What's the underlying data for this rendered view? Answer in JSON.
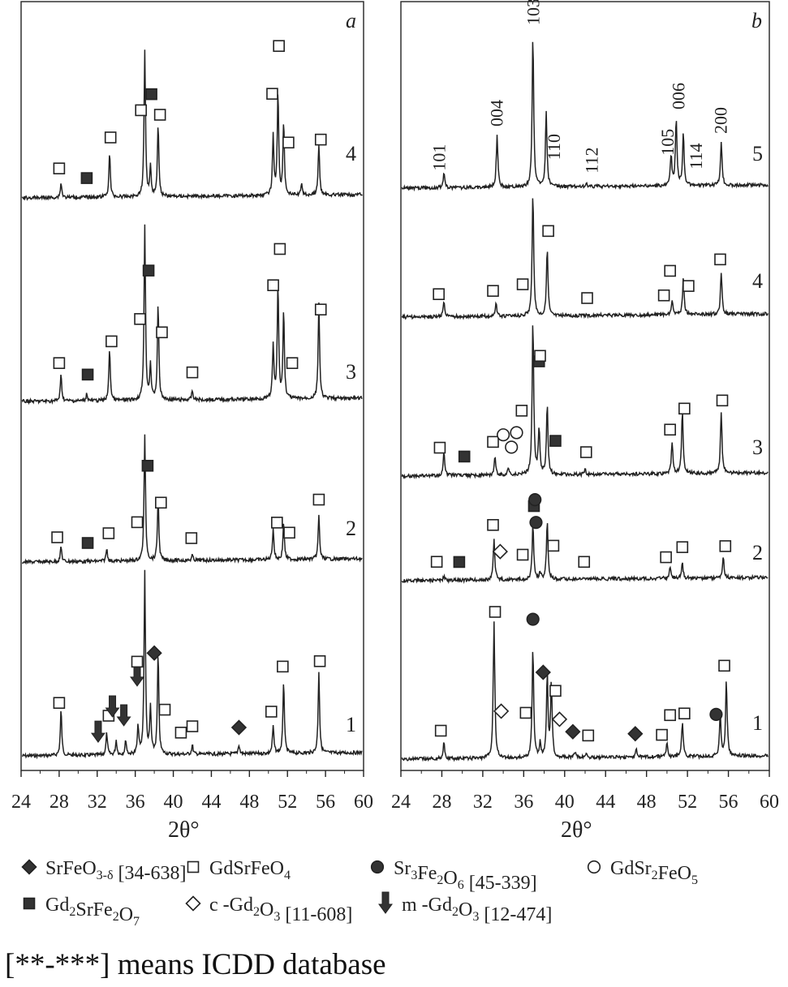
{
  "caption": "[**-***] means ICDD database",
  "colors": {
    "trace": "#222222",
    "frame": "#222222",
    "filled_marker": "#333333",
    "open_marker": "#ffffff"
  },
  "legend": [
    {
      "marker": "filled-diamond",
      "label": "SrFeO",
      "sub": "3-δ",
      "suffix": " [34-638]"
    },
    {
      "marker": "open-square",
      "label": "GdSrFeO",
      "sub": "4",
      "suffix": ""
    },
    {
      "marker": "filled-circle",
      "label": "Sr",
      "sub": "3",
      "label2": "Fe",
      "sub2": "2",
      "label3": "O",
      "sub3": "6",
      "suffix": " [45-339]"
    },
    {
      "marker": "open-circle",
      "label": "GdSr",
      "sub": "2",
      "label2": "FeO",
      "sub2": "5",
      "suffix": ""
    },
    {
      "marker": "filled-square",
      "label": "Gd",
      "sub": "2",
      "label2": "SrFe",
      "sub2": "2",
      "label3": "O",
      "sub3": "7",
      "suffix": ""
    },
    {
      "marker": "open-diamond",
      "label": "c -Gd",
      "sub": "2",
      "label2": "O",
      "sub2": "3",
      "suffix": " [11-608]"
    },
    {
      "marker": "arrow",
      "label": "m -Gd",
      "sub": "2",
      "label2": "O",
      "sub2": "3",
      "suffix": " [12-474]"
    }
  ],
  "chart_data": [
    {
      "type": "line",
      "panel": "a",
      "xlabel": "2θ°",
      "xlim": [
        24,
        60
      ],
      "xticks": [
        24,
        28,
        32,
        36,
        40,
        44,
        48,
        52,
        56,
        60
      ],
      "grid": false,
      "series": [
        {
          "name": "1",
          "peaks": [
            [
              28.2,
              0.25
            ],
            [
              33.0,
              0.12
            ],
            [
              34.0,
              0.08
            ],
            [
              35.0,
              0.08
            ],
            [
              36.3,
              0.15
            ],
            [
              37.0,
              1.0
            ],
            [
              37.6,
              0.25
            ],
            [
              38.4,
              0.55
            ],
            [
              42.0,
              0.05
            ],
            [
              46.9,
              0.05
            ],
            [
              50.5,
              0.15
            ],
            [
              51.6,
              0.4
            ],
            [
              55.3,
              0.45
            ]
          ],
          "markers": [
            {
              "type": "open-square",
              "x": 28.0
            },
            {
              "type": "arrow",
              "x": 32.1
            },
            {
              "type": "open-square",
              "x": 33.2
            },
            {
              "type": "arrow",
              "x": 33.6
            },
            {
              "type": "arrow",
              "x": 34.8
            },
            {
              "type": "arrow",
              "x": 36.2
            },
            {
              "type": "open-square",
              "x": 36.2
            },
            {
              "type": "filled-diamond",
              "x": 38.0
            },
            {
              "type": "open-square",
              "x": 39.1
            },
            {
              "type": "open-square",
              "x": 40.8
            },
            {
              "type": "open-square",
              "x": 42.0
            },
            {
              "type": "filled-diamond",
              "x": 46.9
            },
            {
              "type": "open-square",
              "x": 50.3
            },
            {
              "type": "open-square",
              "x": 51.5
            },
            {
              "type": "open-square",
              "x": 55.4
            }
          ]
        },
        {
          "name": "2",
          "peaks": [
            [
              28.2,
              0.12
            ],
            [
              33.0,
              0.1
            ],
            [
              37.0,
              1.0
            ],
            [
              38.4,
              0.5
            ],
            [
              42.0,
              0.04
            ],
            [
              50.5,
              0.25
            ],
            [
              51.6,
              0.3
            ],
            [
              55.3,
              0.35
            ]
          ],
          "markers": [
            {
              "type": "open-square",
              "x": 27.8
            },
            {
              "type": "filled-square",
              "x": 31.0
            },
            {
              "type": "open-square",
              "x": 33.2
            },
            {
              "type": "open-square",
              "x": 36.2
            },
            {
              "type": "filled-square",
              "x": 37.3
            },
            {
              "type": "open-square",
              "x": 38.7
            },
            {
              "type": "open-square",
              "x": 41.9
            },
            {
              "type": "open-square",
              "x": 50.9
            },
            {
              "type": "open-square",
              "x": 52.2
            },
            {
              "type": "open-square",
              "x": 55.3
            }
          ]
        },
        {
          "name": "3",
          "peaks": [
            [
              28.2,
              0.15
            ],
            [
              30.9,
              0.04
            ],
            [
              33.3,
              0.3
            ],
            [
              37.0,
              1.0
            ],
            [
              37.6,
              0.2
            ],
            [
              38.4,
              0.55
            ],
            [
              42.0,
              0.05
            ],
            [
              50.5,
              0.3
            ],
            [
              51.0,
              0.65
            ],
            [
              51.6,
              0.5
            ],
            [
              55.3,
              0.55
            ]
          ],
          "markers": [
            {
              "type": "open-square",
              "x": 28.0
            },
            {
              "type": "filled-square",
              "x": 31.0
            },
            {
              "type": "open-square",
              "x": 33.5
            },
            {
              "type": "open-square",
              "x": 36.5
            },
            {
              "type": "filled-square",
              "x": 37.4
            },
            {
              "type": "open-square",
              "x": 38.8
            },
            {
              "type": "open-square",
              "x": 42.0
            },
            {
              "type": "open-square",
              "x": 50.5
            },
            {
              "type": "open-square",
              "x": 51.2
            },
            {
              "type": "open-square",
              "x": 52.5
            },
            {
              "type": "open-square",
              "x": 55.5
            }
          ]
        },
        {
          "name": "4",
          "peaks": [
            [
              28.2,
              0.1
            ],
            [
              33.3,
              0.3
            ],
            [
              37.0,
              1.0
            ],
            [
              37.6,
              0.2
            ],
            [
              38.4,
              0.5
            ],
            [
              50.5,
              0.4
            ],
            [
              51.0,
              0.7
            ],
            [
              51.6,
              0.5
            ],
            [
              53.5,
              0.08
            ],
            [
              55.3,
              0.35
            ]
          ],
          "markers": [
            {
              "type": "open-square",
              "x": 28.0
            },
            {
              "type": "filled-square",
              "x": 30.9
            },
            {
              "type": "open-square",
              "x": 33.4
            },
            {
              "type": "open-square",
              "x": 36.6
            },
            {
              "type": "filled-square",
              "x": 37.7
            },
            {
              "type": "open-square",
              "x": 38.6
            },
            {
              "type": "open-square",
              "x": 50.4
            },
            {
              "type": "open-square",
              "x": 51.1
            },
            {
              "type": "open-square",
              "x": 52.1
            },
            {
              "type": "open-square",
              "x": 55.5
            }
          ]
        }
      ]
    },
    {
      "type": "line",
      "panel": "b",
      "xlabel": "2θ°",
      "xlim": [
        24,
        60
      ],
      "xticks": [
        24,
        28,
        32,
        36,
        40,
        44,
        48,
        52,
        56,
        60
      ],
      "grid": false,
      "series": [
        {
          "name": "1",
          "peaks": [
            [
              28.2,
              0.12
            ],
            [
              33.1,
              1.0
            ],
            [
              36.9,
              0.8
            ],
            [
              37.6,
              0.1
            ],
            [
              38.3,
              0.6
            ],
            [
              38.7,
              0.55
            ],
            [
              41.0,
              0.04
            ],
            [
              42.1,
              0.03
            ],
            [
              47.0,
              0.05
            ],
            [
              50.0,
              0.1
            ],
            [
              51.5,
              0.25
            ],
            [
              55.2,
              0.3
            ],
            [
              55.8,
              0.55
            ]
          ],
          "markers": [
            {
              "type": "open-square",
              "x": 27.9
            },
            {
              "type": "open-square",
              "x": 33.2
            },
            {
              "type": "open-diamond",
              "x": 33.8
            },
            {
              "type": "open-square",
              "x": 36.2
            },
            {
              "type": "filled-circle",
              "x": 36.9
            },
            {
              "type": "filled-diamond",
              "x": 37.9
            },
            {
              "type": "open-square",
              "x": 39.1
            },
            {
              "type": "open-diamond",
              "x": 39.5
            },
            {
              "type": "filled-diamond",
              "x": 40.8
            },
            {
              "type": "open-square",
              "x": 42.3
            },
            {
              "type": "filled-diamond",
              "x": 46.9
            },
            {
              "type": "open-square",
              "x": 49.5
            },
            {
              "type": "open-square",
              "x": 50.3
            },
            {
              "type": "open-square",
              "x": 51.7
            },
            {
              "type": "filled-circle",
              "x": 54.8
            },
            {
              "type": "open-square",
              "x": 55.6
            }
          ]
        },
        {
          "name": "2",
          "peaks": [
            [
              28.2,
              0.05
            ],
            [
              33.1,
              0.55
            ],
            [
              36.9,
              0.75
            ],
            [
              37.6,
              0.1
            ],
            [
              38.3,
              0.8
            ],
            [
              50.3,
              0.15
            ],
            [
              51.5,
              0.2
            ],
            [
              55.5,
              0.3
            ]
          ],
          "markers": [
            {
              "type": "open-square",
              "x": 27.5
            },
            {
              "type": "filled-square",
              "x": 29.7
            },
            {
              "type": "open-square",
              "x": 33.0
            },
            {
              "type": "open-diamond",
              "x": 33.7
            },
            {
              "type": "open-square",
              "x": 35.9
            },
            {
              "type": "filled-square",
              "x": 37.0
            },
            {
              "type": "filled-circle",
              "x": 37.2
            },
            {
              "type": "filled-circle",
              "x": 37.1
            },
            {
              "type": "open-square",
              "x": 38.9
            },
            {
              "type": "open-square",
              "x": 41.9
            },
            {
              "type": "open-square",
              "x": 49.9
            },
            {
              "type": "open-square",
              "x": 51.5
            },
            {
              "type": "open-square",
              "x": 55.7
            }
          ]
        },
        {
          "name": "3",
          "peaks": [
            [
              28.2,
              0.15
            ],
            [
              33.2,
              0.12
            ],
            [
              34.5,
              0.05
            ],
            [
              36.9,
              1.0
            ],
            [
              37.5,
              0.3
            ],
            [
              38.3,
              0.45
            ],
            [
              42.0,
              0.03
            ],
            [
              50.5,
              0.2
            ],
            [
              51.5,
              0.4
            ],
            [
              55.3,
              0.4
            ]
          ],
          "markers": [
            {
              "type": "open-square",
              "x": 27.8
            },
            {
              "type": "filled-square",
              "x": 30.2
            },
            {
              "type": "open-square",
              "x": 33.0
            },
            {
              "type": "open-circle",
              "x": 34.0
            },
            {
              "type": "open-circle",
              "x": 34.8
            },
            {
              "type": "open-circle",
              "x": 35.3
            },
            {
              "type": "open-square",
              "x": 35.8
            },
            {
              "type": "filled-square",
              "x": 37.5
            },
            {
              "type": "open-square",
              "x": 37.6
            },
            {
              "type": "filled-square",
              "x": 39.1
            },
            {
              "type": "open-square",
              "x": 42.1
            },
            {
              "type": "open-square",
              "x": 50.3
            },
            {
              "type": "open-square",
              "x": 51.7
            },
            {
              "type": "open-square",
              "x": 55.4
            }
          ]
        },
        {
          "name": "4",
          "peaks": [
            [
              28.2,
              0.12
            ],
            [
              33.3,
              0.1
            ],
            [
              36.9,
              1.0
            ],
            [
              38.3,
              0.55
            ],
            [
              50.5,
              0.12
            ],
            [
              51.6,
              0.3
            ],
            [
              55.3,
              0.35
            ]
          ],
          "markers": [
            {
              "type": "open-square",
              "x": 27.7
            },
            {
              "type": "open-square",
              "x": 33.0
            },
            {
              "type": "open-square",
              "x": 35.9
            },
            {
              "type": "open-square",
              "x": 38.4
            },
            {
              "type": "open-square",
              "x": 42.2
            },
            {
              "type": "open-square",
              "x": 49.7
            },
            {
              "type": "open-square",
              "x": 50.3
            },
            {
              "type": "open-square",
              "x": 52.1
            },
            {
              "type": "open-square",
              "x": 55.2
            }
          ]
        },
        {
          "name": "5",
          "peaks": [
            [
              28.2,
              0.1
            ],
            [
              33.4,
              0.35
            ],
            [
              36.9,
              1.0
            ],
            [
              38.2,
              0.5
            ],
            [
              42.1,
              0.02
            ],
            [
              50.4,
              0.2
            ],
            [
              50.9,
              0.45
            ],
            [
              51.6,
              0.35
            ],
            [
              55.3,
              0.3
            ]
          ],
          "hkl": [
            {
              "label": "101",
              "x": 27.7
            },
            {
              "label": "004",
              "x": 33.3
            },
            {
              "label": "103",
              "x": 36.9
            },
            {
              "label": "110",
              "x": 38.9
            },
            {
              "label": "112",
              "x": 42.6
            },
            {
              "label": "105",
              "x": 50.0
            },
            {
              "label": "006",
              "x": 51.1
            },
            {
              "label": "114",
              "x": 52.8
            },
            {
              "label": "200",
              "x": 55.2
            }
          ],
          "markers": []
        }
      ]
    }
  ]
}
